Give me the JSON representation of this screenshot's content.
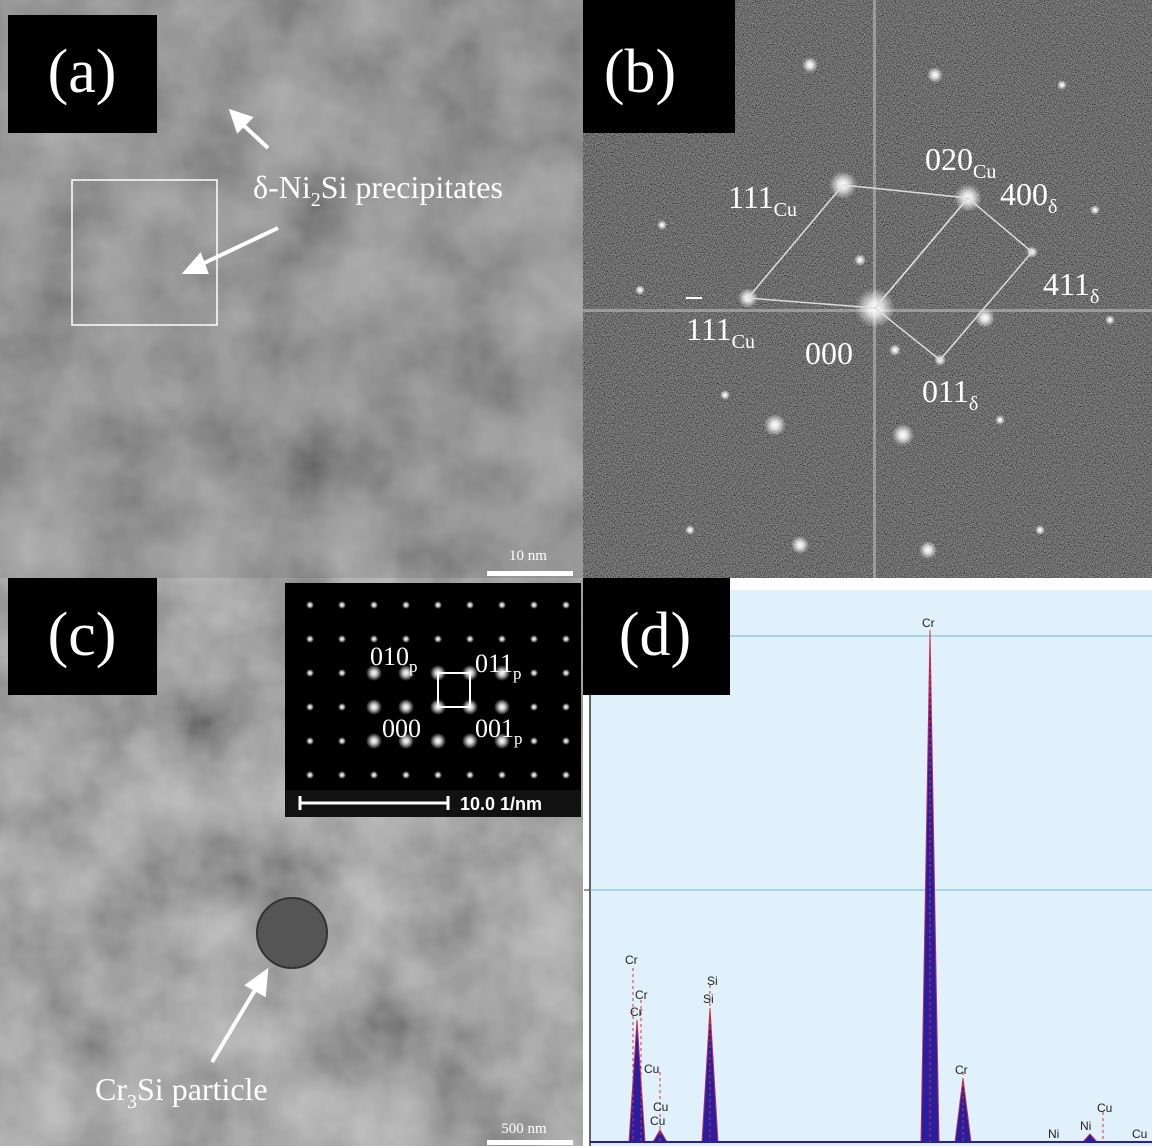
{
  "panel_a": {
    "label": "(a)",
    "precipitate_label": [
      "δ-Ni",
      "2",
      "Si precipitates"
    ],
    "scale_bar": "10 nm"
  },
  "panel_b": {
    "label": "(b)",
    "spots": [
      {
        "index": "020",
        "sub": "Cu"
      },
      {
        "index": "400",
        "sub": "δ"
      },
      {
        "index": "111",
        "sub": "Cu"
      },
      {
        "index": "411",
        "sub": "δ"
      },
      {
        "index": "111",
        "sub": "Cu"
      },
      {
        "index": "000"
      },
      {
        "index": "011",
        "sub": "δ"
      }
    ]
  },
  "panel_c": {
    "label": "(c)",
    "inset_spots": [
      {
        "index": "010",
        "sub": "p"
      },
      {
        "index": "011",
        "sub": "p"
      },
      {
        "index": "000"
      },
      {
        "index": "001",
        "sub": "p"
      }
    ],
    "inset_scale_bar": "10.0 1/nm",
    "particle_label": [
      "Cr",
      "3",
      "Si particle"
    ],
    "scale_bar": "500 nm"
  },
  "panel_d": {
    "label": "(d)",
    "peak_labels": [
      "Cr",
      "Cr",
      "Cr",
      "Cu",
      "Cu",
      "Cu",
      "Si",
      "Si",
      "Cr",
      "Cr",
      "Ni",
      "Cu",
      "Ni",
      "Cu"
    ]
  }
}
